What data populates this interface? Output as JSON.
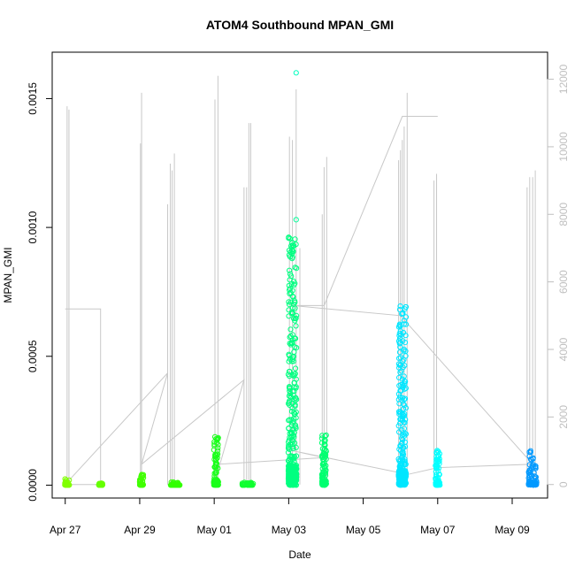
{
  "chart_data": {
    "type": "scatter",
    "title": "ATOM4 Southbound MPAN_GMI",
    "xlabel": "Date",
    "ylabel": "MPAN_GMI",
    "xlim": [
      -0.35,
      12.95
    ],
    "ylim": [
      -5e-05,
      0.00168
    ],
    "y2lim": [
      -400,
      12800
    ],
    "x_ticks": [
      {
        "value": 0,
        "label": "Apr 27"
      },
      {
        "value": 2,
        "label": "Apr 29"
      },
      {
        "value": 4,
        "label": "May 01"
      },
      {
        "value": 6,
        "label": "May 03"
      },
      {
        "value": 8,
        "label": "May 05"
      },
      {
        "value": 10,
        "label": "May 07"
      },
      {
        "value": 12,
        "label": "May 09"
      }
    ],
    "y_ticks": [
      {
        "value": 0.0,
        "label": "0.0000"
      },
      {
        "value": 0.0005,
        "label": "0.0005"
      },
      {
        "value": 0.001,
        "label": "0.0010"
      },
      {
        "value": 0.0015,
        "label": "0.0015"
      }
    ],
    "y2_ticks": [
      {
        "value": 0,
        "label": "0"
      },
      {
        "value": 2000,
        "label": "2000"
      },
      {
        "value": 4000,
        "label": "4000"
      },
      {
        "value": 6000,
        "label": "6000"
      },
      {
        "value": 8000,
        "label": "8000"
      },
      {
        "value": 10000,
        "label": "10000"
      },
      {
        "value": 12000,
        "label": "12000"
      }
    ],
    "clusters": [
      {
        "x": 0.05,
        "width": 0.12,
        "ymax": 2.5e-05,
        "color": "#80ff00"
      },
      {
        "x": 0.95,
        "width": 0.1,
        "ymax": 8e-06,
        "color": "#66ff00"
      },
      {
        "x": 2.05,
        "width": 0.1,
        "ymax": 4.5e-05,
        "color": "#40ff00"
      },
      {
        "x": 2.95,
        "width": 0.25,
        "ymax": 1.2e-05,
        "color": "#33ff00"
      },
      {
        "x": 4.05,
        "width": 0.12,
        "ymax": 0.00019,
        "color": "#1aff1a"
      },
      {
        "x": 4.9,
        "width": 0.3,
        "ymax": 1.2e-05,
        "color": "#10ff30"
      },
      {
        "x": 6.1,
        "width": 0.22,
        "ymax": 0.00097,
        "color": "#00ff80"
      },
      {
        "x": 6.95,
        "width": 0.12,
        "ymax": 0.0002,
        "color": "#00ff70"
      },
      {
        "x": 9.05,
        "width": 0.2,
        "ymax": 0.0007,
        "color": "#00e6ff"
      },
      {
        "x": 10.0,
        "width": 0.12,
        "ymax": 0.00014,
        "color": "#00ffff"
      },
      {
        "x": 12.55,
        "width": 0.22,
        "ymax": 0.00014,
        "color": "#0099ff"
      }
    ],
    "outliers": [
      {
        "x": 6.2,
        "y": 0.0016,
        "color": "#00ffbf"
      },
      {
        "x": 6.2,
        "y": 0.00103,
        "color": "#00ff99"
      }
    ],
    "spikes": [
      {
        "x": 0.05,
        "y2": 11200
      },
      {
        "x": 0.1,
        "y2": 11100
      },
      {
        "x": 2.02,
        "y2": 10100
      },
      {
        "x": 2.05,
        "y2": 11600
      },
      {
        "x": 2.75,
        "y2": 8300
      },
      {
        "x": 2.82,
        "y2": 9500
      },
      {
        "x": 2.87,
        "y2": 9300
      },
      {
        "x": 2.93,
        "y2": 9800
      },
      {
        "x": 4.02,
        "y2": 11400
      },
      {
        "x": 4.1,
        "y2": 12100
      },
      {
        "x": 4.8,
        "y2": 8800
      },
      {
        "x": 4.87,
        "y2": 8800
      },
      {
        "x": 4.93,
        "y2": 10700
      },
      {
        "x": 4.98,
        "y2": 10700
      },
      {
        "x": 6.02,
        "y2": 10300
      },
      {
        "x": 6.1,
        "y2": 10200
      },
      {
        "x": 6.2,
        "y2": 11700
      },
      {
        "x": 6.3,
        "y2": 7000
      },
      {
        "x": 6.9,
        "y2": 8000
      },
      {
        "x": 6.95,
        "y2": 9400
      },
      {
        "x": 7.02,
        "y2": 9700
      },
      {
        "x": 8.95,
        "y2": 9600
      },
      {
        "x": 9.0,
        "y2": 9900
      },
      {
        "x": 9.05,
        "y2": 10200
      },
      {
        "x": 9.1,
        "y2": 10600
      },
      {
        "x": 9.18,
        "y2": 11600
      },
      {
        "x": 9.9,
        "y2": 9000
      },
      {
        "x": 9.97,
        "y2": 9200
      },
      {
        "x": 12.4,
        "y2": 8800
      },
      {
        "x": 12.47,
        "y2": 9100
      },
      {
        "x": 12.55,
        "y2": 9100
      },
      {
        "x": 12.62,
        "y2": 9300
      }
    ],
    "track": [
      {
        "x": 0.0,
        "y2": 5200
      },
      {
        "x": 0.95,
        "y2": 5200
      },
      {
        "x": 0.95,
        "y2": 0
      },
      {
        "x": 0.0,
        "y2": 0
      },
      {
        "x": 2.75,
        "y2": 3300
      },
      {
        "x": 2.05,
        "y2": 600
      },
      {
        "x": 4.8,
        "y2": 3100
      },
      {
        "x": 4.05,
        "y2": 200
      },
      {
        "x": 4.1,
        "y2": 600
      },
      {
        "x": 6.95,
        "y2": 800
      },
      {
        "x": 6.1,
        "y2": 1000
      },
      {
        "x": 9.2,
        "y2": 300
      },
      {
        "x": 10.0,
        "y2": 500
      },
      {
        "x": 12.55,
        "y2": 600
      },
      {
        "x": 9.0,
        "y2": 5000
      },
      {
        "x": 6.1,
        "y2": 5300
      },
      {
        "x": 6.95,
        "y2": 5300
      },
      {
        "x": 9.05,
        "y2": 10900
      },
      {
        "x": 10.0,
        "y2": 10900
      }
    ],
    "grid": false,
    "legend": "none"
  }
}
